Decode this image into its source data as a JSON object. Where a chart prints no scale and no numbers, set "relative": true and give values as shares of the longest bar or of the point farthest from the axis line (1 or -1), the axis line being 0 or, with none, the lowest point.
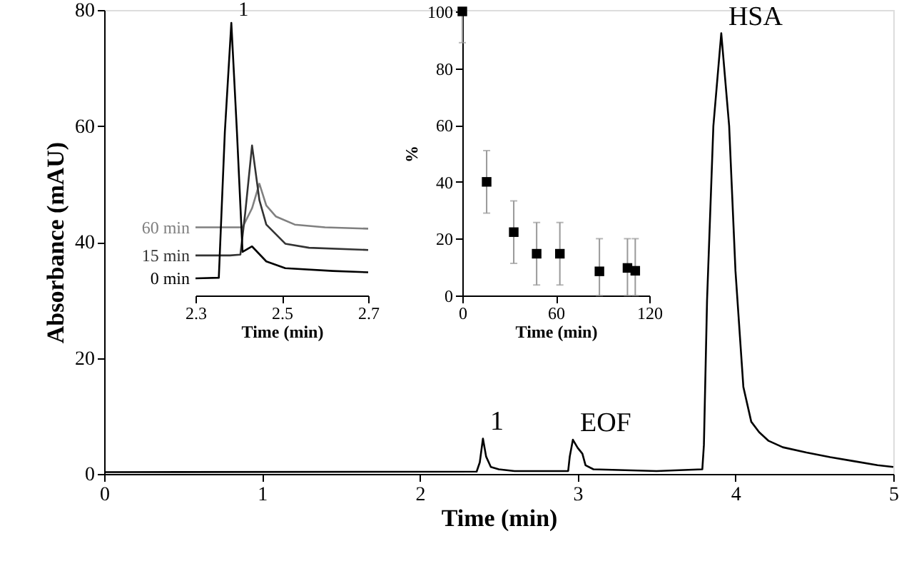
{
  "chart_data": [
    {
      "type": "line",
      "xlabel": "Time (min)",
      "ylabel": "Absorbance (mAU)",
      "xlim": [
        0,
        5
      ],
      "xticks": [
        0,
        1,
        2,
        3,
        4,
        5
      ],
      "ylim": [
        0,
        80
      ],
      "yticks": [
        0,
        20,
        40,
        60,
        80
      ],
      "grid": false,
      "line_style": "solid",
      "marker": "none",
      "series": [
        {
          "color": "#000000",
          "x": [
            0,
            2.36,
            2.38,
            2.4,
            2.42,
            2.45,
            2.5,
            2.6,
            2.94,
            2.95,
            2.97,
            3.0,
            3.03,
            3.05,
            3.1,
            3.5,
            3.79,
            3.8,
            3.82,
            3.86,
            3.91,
            3.96,
            4.0,
            4.05,
            4.1,
            4.15,
            4.21,
            4.3,
            4.45,
            4.6,
            4.75,
            4.9,
            5
          ],
          "values": [
            0.3,
            0.4,
            2,
            6.1,
            3,
            1.2,
            0.8,
            0.5,
            0.5,
            3,
            5.9,
            4.5,
            3.5,
            1.5,
            0.8,
            0.5,
            0.8,
            5,
            30,
            60,
            76,
            60,
            35,
            15,
            9,
            7.2,
            5.7,
            4.6,
            3.7,
            2.9,
            2.2,
            1.5,
            1.2
          ]
        }
      ],
      "annotations": [
        {
          "text": "1",
          "x": 2.4,
          "y": 6.1
        },
        {
          "text": "EOF",
          "x": 2.97,
          "y": 5.9
        },
        {
          "text": "HSA",
          "x": 3.91,
          "y": 76
        }
      ]
    },
    {
      "type": "line",
      "relative": true,
      "xlabel": "Time (min)",
      "xlim": [
        2.3,
        2.7
      ],
      "xticks": [
        2.3,
        2.5,
        2.7
      ],
      "tick_labels": "x",
      "grid": false,
      "line_style": "solid",
      "marker": "none",
      "series": [
        {
          "name": "60 min",
          "color": "#808080",
          "x": [
            2.3,
            2.35,
            2.409,
            2.431,
            2.448,
            2.464,
            2.486,
            2.53,
            2.6,
            2.7
          ],
          "values": [
            0.25,
            0.25,
            0.25,
            0.32,
            0.41,
            0.33,
            0.29,
            0.26,
            0.25,
            0.245
          ]
        },
        {
          "name": "15 min",
          "color": "#333333",
          "x": [
            2.3,
            2.38,
            2.404,
            2.415,
            2.431,
            2.448,
            2.464,
            2.508,
            2.563,
            2.7
          ],
          "values": [
            0.147,
            0.147,
            0.15,
            0.3,
            0.55,
            0.35,
            0.26,
            0.19,
            0.175,
            0.167
          ]
        },
        {
          "name": "0 min",
          "color": "#000000",
          "x": [
            2.3,
            2.354,
            2.368,
            2.383,
            2.396,
            2.409,
            2.431,
            2.464,
            2.508,
            2.618,
            2.7
          ],
          "values": [
            0.063,
            0.065,
            0.6,
            1.0,
            0.6,
            0.16,
            0.18,
            0.125,
            0.1,
            0.09,
            0.085
          ]
        }
      ],
      "annotations": [
        {
          "text": "1",
          "x": 2.383,
          "y": 1.0
        }
      ]
    },
    {
      "type": "scatter",
      "xlabel": "Time (min)",
      "ylabel": "%",
      "xlim": [
        0,
        120
      ],
      "xticks": [
        0,
        60,
        120
      ],
      "ylim": [
        0,
        100
      ],
      "yticks": [
        0,
        20,
        40,
        60,
        80,
        100
      ],
      "grid": false,
      "marker": "square",
      "x": [
        0,
        15.6,
        33,
        47.7,
        62.6,
        88,
        106,
        111
      ],
      "values": [
        100,
        40,
        22.3,
        14.7,
        14.7,
        8.5,
        9.7,
        8.7
      ],
      "errors": [
        [
          89,
          100
        ],
        11,
        11,
        11,
        11,
        [
          0,
          20
        ],
        [
          0,
          20
        ],
        [
          0,
          20
        ]
      ],
      "color": "#000000"
    }
  ]
}
